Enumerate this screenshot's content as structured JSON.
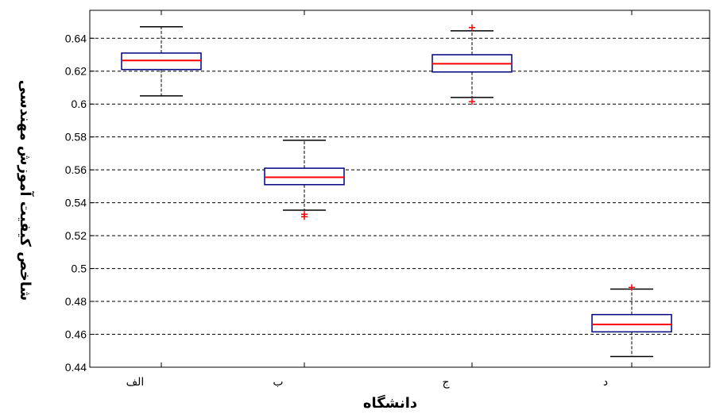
{
  "chart_data": {
    "type": "box",
    "xlabel": "دانشگاه",
    "ylabel": "شاخص کیفیت آموزش مهندسی",
    "ylim": [
      0.44,
      0.657
    ],
    "yticks": [
      0.44,
      0.46,
      0.48,
      0.5,
      0.52,
      0.54,
      0.56,
      0.58,
      0.6,
      0.62,
      0.64
    ],
    "ytick_labels": [
      "0.44",
      "0.46",
      "0.48",
      "0.5",
      "0.52",
      "0.54",
      "0.56",
      "0.58",
      "0.6",
      "0.62",
      "0.64"
    ],
    "grid": "horizontal-dashed",
    "categories": [
      "الف",
      "ب",
      "ج",
      "د"
    ],
    "boxes": [
      {
        "category": "الف",
        "whisker_low": 0.605,
        "q1": 0.621,
        "median": 0.6265,
        "q3": 0.631,
        "whisker_high": 0.647,
        "outliers": []
      },
      {
        "category": "ب",
        "whisker_low": 0.5355,
        "q1": 0.551,
        "median": 0.5555,
        "q3": 0.561,
        "whisker_high": 0.578,
        "outliers": [
          0.5315,
          0.533
        ]
      },
      {
        "category": "ج",
        "whisker_low": 0.604,
        "q1": 0.6195,
        "median": 0.6245,
        "q3": 0.63,
        "whisker_high": 0.6445,
        "outliers": [
          0.6465,
          0.6015
        ]
      },
      {
        "category": "د",
        "whisker_low": 0.4465,
        "q1": 0.4615,
        "median": 0.466,
        "q3": 0.472,
        "whisker_high": 0.4875,
        "outliers": [
          0.4885
        ]
      }
    ],
    "colors": {
      "box": "#000080",
      "median": "#ff0000",
      "outlier": "#ff0000",
      "whisker": "#000000",
      "grid": "#000000"
    }
  }
}
